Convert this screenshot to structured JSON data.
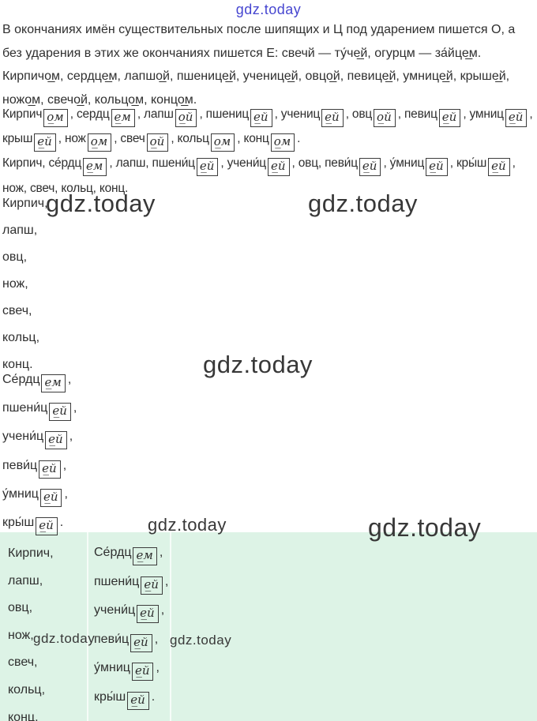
{
  "colors": {
    "page-bg": "#ffffff",
    "text": "#2f2f2f",
    "accent-blue": "#4646d0",
    "watermark-dark": "#383838",
    "table-green": "#ddf3e6",
    "table-divider": "#f6fcf8",
    "box-border": "#3c3c3c"
  },
  "brand": {
    "text": "gdz.today"
  },
  "rule": {
    "line1": "В окончаниях имён существительных после шипящих и Ц под ударением пишется О, а",
    "line2": "без ударения в этих же окончаниях пишется Е: свечй — ту́че̲й, огурцм — за́йце̲м."
  },
  "answer": {
    "line1": "Кирпичо̲м, сердце̲м, лапшо̲й, пшенице̲й, ученице̲й, овцо̲й, певице̲й, умнице̲й, крыше̲й,",
    "line2": "ножо̲м, свечо̲й, кольцо̲м, концо̲м."
  },
  "boxed_row1": [
    {
      "stem": "Кирпич",
      "end": "о̲м",
      "sep": ", "
    },
    {
      "stem": "сердц",
      "end": "е̲м",
      "sep": ", "
    },
    {
      "stem": "лапш",
      "end": "о̲й",
      "sep": ", "
    },
    {
      "stem": "пшениц",
      "end": "е̲й",
      "sep": ", "
    },
    {
      "stem": "учениц",
      "end": "е̲й",
      "sep": ", "
    },
    {
      "stem": "овц",
      "end": "о̲й",
      "sep": ", "
    },
    {
      "stem": "певиц",
      "end": "е̲й",
      "sep": ", "
    },
    {
      "stem": "умниц",
      "end": "е̲й",
      "sep": ","
    }
  ],
  "boxed_row2": [
    {
      "stem": "крыш",
      "end": "е̲й",
      "sep": ", "
    },
    {
      "stem": "нож",
      "end": "о̲м",
      "sep": ", "
    },
    {
      "stem": "свеч",
      "end": "о̲й",
      "sep": ", "
    },
    {
      "stem": "кольц",
      "end": "о̲м",
      "sep": ", "
    },
    {
      "stem": "конц",
      "end": "о̲м",
      "sep": "."
    }
  ],
  "stem_row1": [
    {
      "stem": "Кирпич",
      "sep": ", "
    },
    {
      "stem": "се́рдц",
      "end": "е̲м",
      "sep": ", "
    },
    {
      "stem": "лапш",
      "sep": ", "
    },
    {
      "stem": "пшени́ц",
      "end": "е̲й",
      "sep": ", "
    },
    {
      "stem": "учени́ц",
      "end": "е̲й",
      "sep": ", "
    },
    {
      "stem": "овц",
      "sep": ", "
    },
    {
      "stem": "певи́ц",
      "end": "е̲й",
      "sep": ", "
    },
    {
      "stem": "у́мниц",
      "end": "е̲й",
      "sep": ", "
    },
    {
      "stem": "кры́ш",
      "end": "е̲й",
      "sep": ","
    }
  ],
  "stem_row2": "нож, свеч, кольц, конц.",
  "plain_list": [
    "Кирпич,",
    "лапш,",
    "овц,",
    "нож,",
    "свеч,",
    "кольц,",
    "конц."
  ],
  "ending_list": [
    {
      "stem": "Се́рдц",
      "end": "е̲м",
      "sep": ","
    },
    {
      "stem": "пшени́ц",
      "end": "е̲й",
      "sep": ","
    },
    {
      "stem": "учени́ц",
      "end": "е̲й",
      "sep": ","
    },
    {
      "stem": "певи́ц",
      "end": "е̲й",
      "sep": ","
    },
    {
      "stem": "у́мниц",
      "end": "е̲й",
      "sep": ","
    },
    {
      "stem": "кры́ш",
      "end": "е̲й",
      "sep": "."
    }
  ],
  "table": {
    "left_column": [
      "Кирпич,",
      "лапш,",
      "овц,",
      "нож,",
      "свеч,",
      "кольц,",
      "конц."
    ],
    "right_column": [
      {
        "stem": "Се́рдц",
        "end": "е̲м",
        "sep": ","
      },
      {
        "stem": "пшени́ц",
        "end": "е̲й",
        "sep": ","
      },
      {
        "stem": "учени́ц",
        "end": "е̲й",
        "sep": ","
      },
      {
        "stem": "певи́ц",
        "end": "е̲й",
        "sep": ","
      },
      {
        "stem": "у́мниц",
        "end": "е̲й",
        "sep": ","
      },
      {
        "stem": "кры́ш",
        "end": "е̲й",
        "sep": "."
      }
    ]
  }
}
